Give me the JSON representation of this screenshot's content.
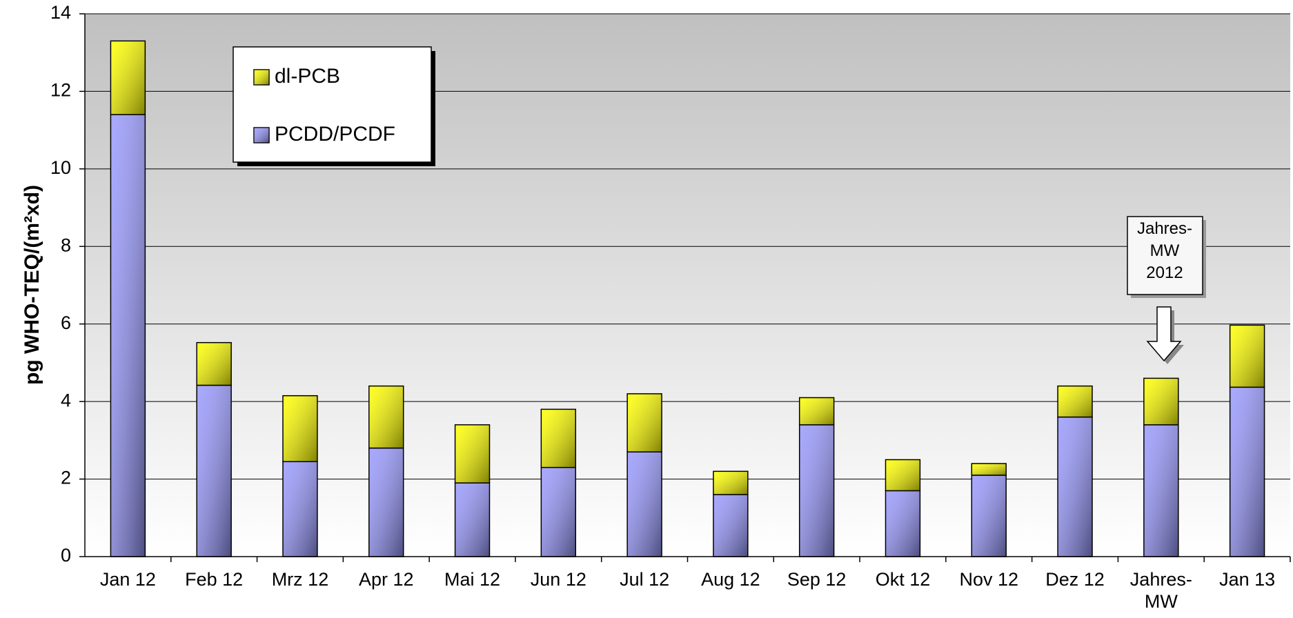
{
  "chart_data": {
    "type": "stacked_bar",
    "y_label": "pg WHO-TEQ/(m²xd)",
    "categories": [
      "Jan 12",
      "Feb 12",
      "Mrz 12",
      "Apr 12",
      "Mai 12",
      "Jun 12",
      "Jul 12",
      "Aug 12",
      "Sep 12",
      "Okt 12",
      "Nov 12",
      "Dez 12",
      "Jahres-\nMW",
      "Jan 13"
    ],
    "series": [
      {
        "name": "PCDD/PCDF",
        "color": "#9999ff",
        "values": [
          11.4,
          4.42,
          2.45,
          2.8,
          1.9,
          2.3,
          2.7,
          1.6,
          3.4,
          1.7,
          2.1,
          3.6,
          3.4,
          4.37
        ]
      },
      {
        "name": "dl-PCB",
        "color": "#ffff00",
        "values": [
          1.9,
          1.1,
          1.7,
          1.6,
          1.5,
          1.5,
          1.5,
          0.6,
          0.7,
          0.8,
          0.3,
          0.8,
          1.2,
          1.6
        ]
      }
    ],
    "ylim": [
      0,
      14
    ],
    "yticks": [
      0,
      2,
      4,
      6,
      8,
      10,
      12,
      14
    ],
    "grid": true,
    "legend": "upper-left",
    "annotation": "Jahres-\nMW\n2012"
  }
}
